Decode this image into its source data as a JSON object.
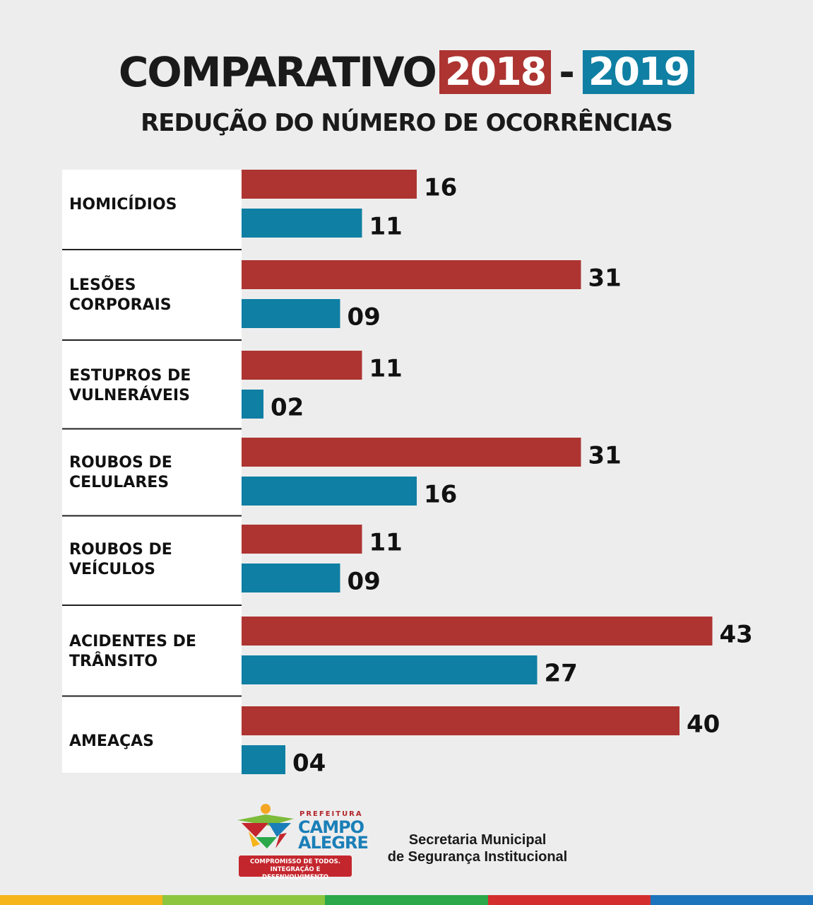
{
  "header": {
    "title": "COMPARATIVO",
    "year_1": "2018",
    "separator": "-",
    "year_2": "2019",
    "subtitle": "REDUÇÃO DO NÚMERO DE OCORRÊNCIAS"
  },
  "colors": {
    "year_2018": "#ad3431",
    "year_2019": "#0f7fa3",
    "background": "#ededed",
    "label_panel": "#ffffff"
  },
  "chart_data": {
    "type": "bar",
    "orientation": "horizontal",
    "title": "REDUÇÃO DO NÚMERO DE OCORRÊNCIAS",
    "categories": [
      [
        "HOMICÍDIOS"
      ],
      [
        "LESÕES",
        "CORPORAIS"
      ],
      [
        "ESTUPROS DE",
        "VULNERÁVEIS"
      ],
      [
        "ROUBOS DE",
        "CELULARES"
      ],
      [
        "ROUBOS DE",
        "VEÍCULOS"
      ],
      [
        "ACIDENTES DE",
        "TRÂNSITO"
      ],
      [
        "AMEAÇAS"
      ]
    ],
    "series": [
      {
        "name": "2018",
        "color": "#ad3431",
        "values": [
          16,
          31,
          11,
          31,
          11,
          43,
          40
        ],
        "labels": [
          "16",
          "31",
          "11",
          "31",
          "11",
          "43",
          "40"
        ]
      },
      {
        "name": "2019",
        "color": "#0f7fa3",
        "values": [
          11,
          9,
          2,
          16,
          9,
          27,
          4
        ],
        "labels": [
          "11",
          "09",
          "02",
          "16",
          "09",
          "27",
          "04"
        ]
      }
    ],
    "xlim": [
      0,
      43
    ],
    "grid": false,
    "legend": "title"
  },
  "footer": {
    "logo_prefeitura": "PREFEITURA",
    "logo_campo": "CAMPO",
    "logo_alegre": "ALEGRE",
    "logo_slogan_1": "COMPROMISSO DE TODOS.",
    "logo_slogan_2": "INTEGRAÇÃO E DESENVOLVIMENTO",
    "secretaria_1": "Secretaria Municipal",
    "secretaria_2": "de Segurança Institucional"
  },
  "bottom_strip_colors": [
    "#f5b51b",
    "#8cc63f",
    "#2aa84a",
    "#d32f2f",
    "#1c75bc"
  ]
}
